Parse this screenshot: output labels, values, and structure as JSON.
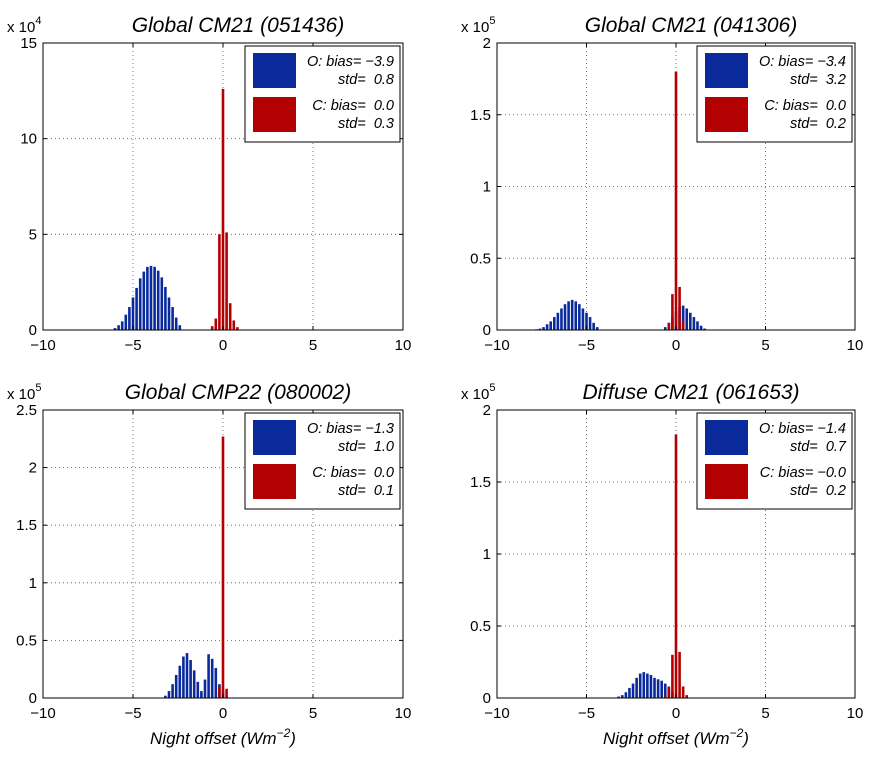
{
  "colors": {
    "observed": "#0a2a9c",
    "corrected": "#b30000",
    "axis": "#000000",
    "grid": "#555555"
  },
  "chart_data": [
    {
      "type": "bar",
      "title": "Global CM21 (051436)",
      "multiplier_base": "x 10",
      "multiplier_exp": "4",
      "xlabel": "",
      "xlim": [
        -10,
        10
      ],
      "ylim": [
        0,
        15
      ],
      "xticks": [
        -10,
        -5,
        0,
        5,
        10
      ],
      "xtick_labels": [
        "−10",
        "−5",
        "0",
        "5",
        "10"
      ],
      "yticks": [
        0,
        5,
        10,
        15
      ],
      "ytick_labels": [
        "0",
        "5",
        "10",
        "15"
      ],
      "grid": true,
      "legend_position": "top-right",
      "series": [
        {
          "name": "O",
          "legend_line1": "O: bias= −3.9",
          "legend_line2": "std=  0.8",
          "color": "#0a2a9c",
          "x": [
            -6.0,
            -5.8,
            -5.6,
            -5.4,
            -5.2,
            -5.0,
            -4.8,
            -4.6,
            -4.4,
            -4.2,
            -4.0,
            -3.8,
            -3.6,
            -3.4,
            -3.2,
            -3.0,
            -2.8,
            -2.6,
            -2.4
          ],
          "values": [
            0.1,
            0.25,
            0.45,
            0.8,
            1.2,
            1.7,
            2.2,
            2.7,
            3.05,
            3.3,
            3.35,
            3.3,
            3.1,
            2.75,
            2.25,
            1.7,
            1.2,
            0.65,
            0.25
          ]
        },
        {
          "name": "C",
          "legend_line1": "C: bias=  0.0",
          "legend_line2": "std=  0.3",
          "color": "#b30000",
          "x": [
            -0.6,
            -0.4,
            -0.2,
            0.0,
            0.2,
            0.4,
            0.6,
            0.8
          ],
          "values": [
            0.2,
            0.6,
            5.0,
            12.6,
            5.1,
            1.4,
            0.5,
            0.15
          ]
        }
      ]
    },
    {
      "type": "bar",
      "title": "Global CM21 (041306)",
      "multiplier_base": "x 10",
      "multiplier_exp": "5",
      "xlabel": "",
      "xlim": [
        -10,
        10
      ],
      "ylim": [
        0,
        2
      ],
      "xticks": [
        -10,
        -5,
        0,
        5,
        10
      ],
      "xtick_labels": [
        "−10",
        "−5",
        "0",
        "5",
        "10"
      ],
      "yticks": [
        0,
        0.5,
        1,
        1.5,
        2
      ],
      "ytick_labels": [
        "0",
        "0.5",
        "1",
        "1.5",
        "2"
      ],
      "grid": true,
      "legend_position": "top-right",
      "series": [
        {
          "name": "O",
          "legend_line1": "O: bias= −3.4",
          "legend_line2": "std=  3.2",
          "color": "#0a2a9c",
          "x": [
            -7.8,
            -7.6,
            -7.4,
            -7.2,
            -7.0,
            -6.8,
            -6.6,
            -6.4,
            -6.2,
            -6.0,
            -5.8,
            -5.6,
            -5.4,
            -5.2,
            -5.0,
            -4.8,
            -4.6,
            -4.4,
            -0.6,
            -0.4,
            -0.2,
            0.0,
            0.2,
            0.4,
            0.6,
            0.8,
            1.0,
            1.2,
            1.4,
            1.6
          ],
          "values": [
            0.005,
            0.01,
            0.02,
            0.04,
            0.06,
            0.09,
            0.12,
            0.15,
            0.18,
            0.2,
            0.21,
            0.2,
            0.18,
            0.15,
            0.12,
            0.09,
            0.05,
            0.02,
            0.02,
            0.05,
            0.09,
            0.13,
            0.16,
            0.17,
            0.15,
            0.12,
            0.09,
            0.06,
            0.03,
            0.01
          ]
        },
        {
          "name": "C",
          "legend_line1": "C: bias=  0.0",
          "legend_line2": "std=  0.2",
          "color": "#b30000",
          "x": [
            -0.4,
            -0.2,
            0.0,
            0.2,
            0.4
          ],
          "values": [
            0.05,
            0.25,
            1.8,
            0.3,
            0.06
          ]
        }
      ]
    },
    {
      "type": "bar",
      "title": "Global CMP22 (080002)",
      "multiplier_base": "x 10",
      "multiplier_exp": "5",
      "xlabel": "Night offset (Wm",
      "xlabel_sup": "−2",
      "xlabel_end": ")",
      "xlim": [
        -10,
        10
      ],
      "ylim": [
        0,
        2.5
      ],
      "xticks": [
        -10,
        -5,
        0,
        5,
        10
      ],
      "xtick_labels": [
        "−10",
        "−5",
        "0",
        "5",
        "10"
      ],
      "yticks": [
        0,
        0.5,
        1,
        1.5,
        2,
        2.5
      ],
      "ytick_labels": [
        "0",
        "0.5",
        "1",
        "1.5",
        "2",
        "2.5"
      ],
      "grid": true,
      "legend_position": "top-right",
      "series": [
        {
          "name": "O",
          "legend_line1": "O: bias= −1.3",
          "legend_line2": "std=  1.0",
          "color": "#0a2a9c",
          "x": [
            -3.2,
            -3.0,
            -2.8,
            -2.6,
            -2.4,
            -2.2,
            -2.0,
            -1.8,
            -1.6,
            -1.4,
            -1.2,
            -1.0,
            -0.8,
            -0.6,
            -0.4,
            -0.2,
            0.0
          ],
          "values": [
            0.02,
            0.06,
            0.12,
            0.2,
            0.28,
            0.36,
            0.39,
            0.33,
            0.24,
            0.14,
            0.06,
            0.16,
            0.38,
            0.34,
            0.26,
            0.12,
            0.06
          ]
        },
        {
          "name": "C",
          "legend_line1": "C: bias=  0.0",
          "legend_line2": "std=  0.1",
          "color": "#b30000",
          "x": [
            -0.2,
            0.0,
            0.2
          ],
          "values": [
            0.1,
            2.27,
            0.08
          ]
        }
      ]
    },
    {
      "type": "bar",
      "title": "Diffuse CM21 (061653)",
      "multiplier_base": "x 10",
      "multiplier_exp": "5",
      "xlabel": "Night offset (Wm",
      "xlabel_sup": "−2",
      "xlabel_end": ")",
      "xlim": [
        -10,
        10
      ],
      "ylim": [
        0,
        2
      ],
      "xticks": [
        -10,
        -5,
        0,
        5,
        10
      ],
      "xtick_labels": [
        "−10",
        "−5",
        "0",
        "5",
        "10"
      ],
      "yticks": [
        0,
        0.5,
        1,
        1.5,
        2
      ],
      "ytick_labels": [
        "0",
        "0.5",
        "1",
        "1.5",
        "2"
      ],
      "grid": true,
      "legend_position": "top-right",
      "series": [
        {
          "name": "O",
          "legend_line1": "O: bias= −1.4",
          "legend_line2": "std=  0.7",
          "color": "#0a2a9c",
          "x": [
            -3.2,
            -3.0,
            -2.8,
            -2.6,
            -2.4,
            -2.2,
            -2.0,
            -1.8,
            -1.6,
            -1.4,
            -1.2,
            -1.0,
            -0.8,
            -0.6,
            -0.4,
            -0.2
          ],
          "values": [
            0.01,
            0.02,
            0.04,
            0.07,
            0.1,
            0.14,
            0.17,
            0.18,
            0.17,
            0.16,
            0.14,
            0.13,
            0.12,
            0.1,
            0.07,
            0.04
          ]
        },
        {
          "name": "C",
          "legend_line1": "C: bias= −0.0",
          "legend_line2": "std=  0.2",
          "color": "#b30000",
          "x": [
            -0.6,
            -0.4,
            -0.2,
            0.0,
            0.2,
            0.4,
            0.6
          ],
          "values": [
            0.02,
            0.08,
            0.3,
            1.83,
            0.32,
            0.08,
            0.02
          ]
        }
      ]
    }
  ]
}
